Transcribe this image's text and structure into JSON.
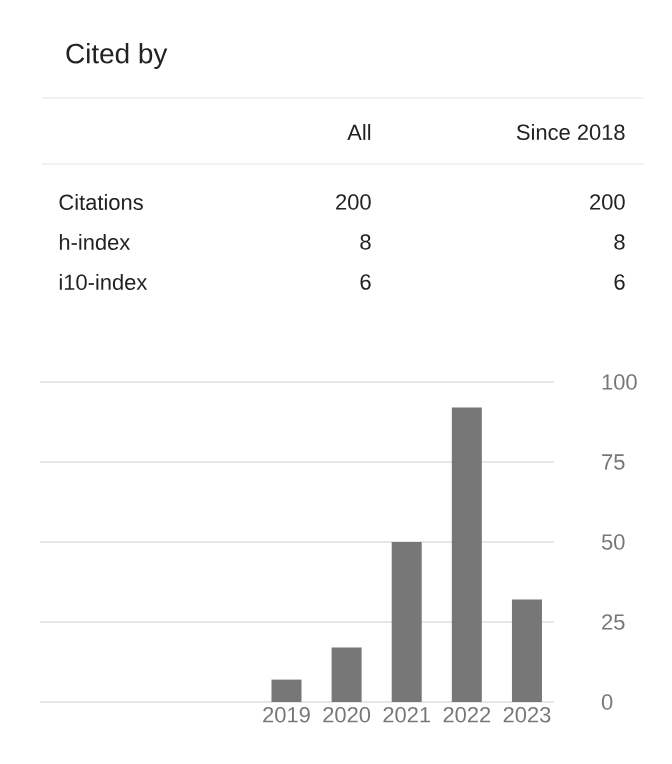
{
  "chart_data": [
    {
      "type": "other",
      "title": "Cited by",
      "categories": [
        "All",
        "Since 2018"
      ],
      "y_categories": [
        "Citations",
        "h-index",
        "i10-index"
      ],
      "cell_labels": [
        [
          "200",
          "200"
        ],
        [
          "8",
          "8"
        ],
        [
          "6",
          "6"
        ]
      ]
    },
    {
      "type": "bar",
      "categories": [
        "2019",
        "2020",
        "2021",
        "2022",
        "2023"
      ],
      "values": [
        7,
        17,
        50,
        92,
        32
      ],
      "color": "#777777",
      "ylim": [
        0,
        100
      ],
      "yticks": [
        0,
        25,
        50,
        75,
        100
      ],
      "grid": "y"
    }
  ]
}
